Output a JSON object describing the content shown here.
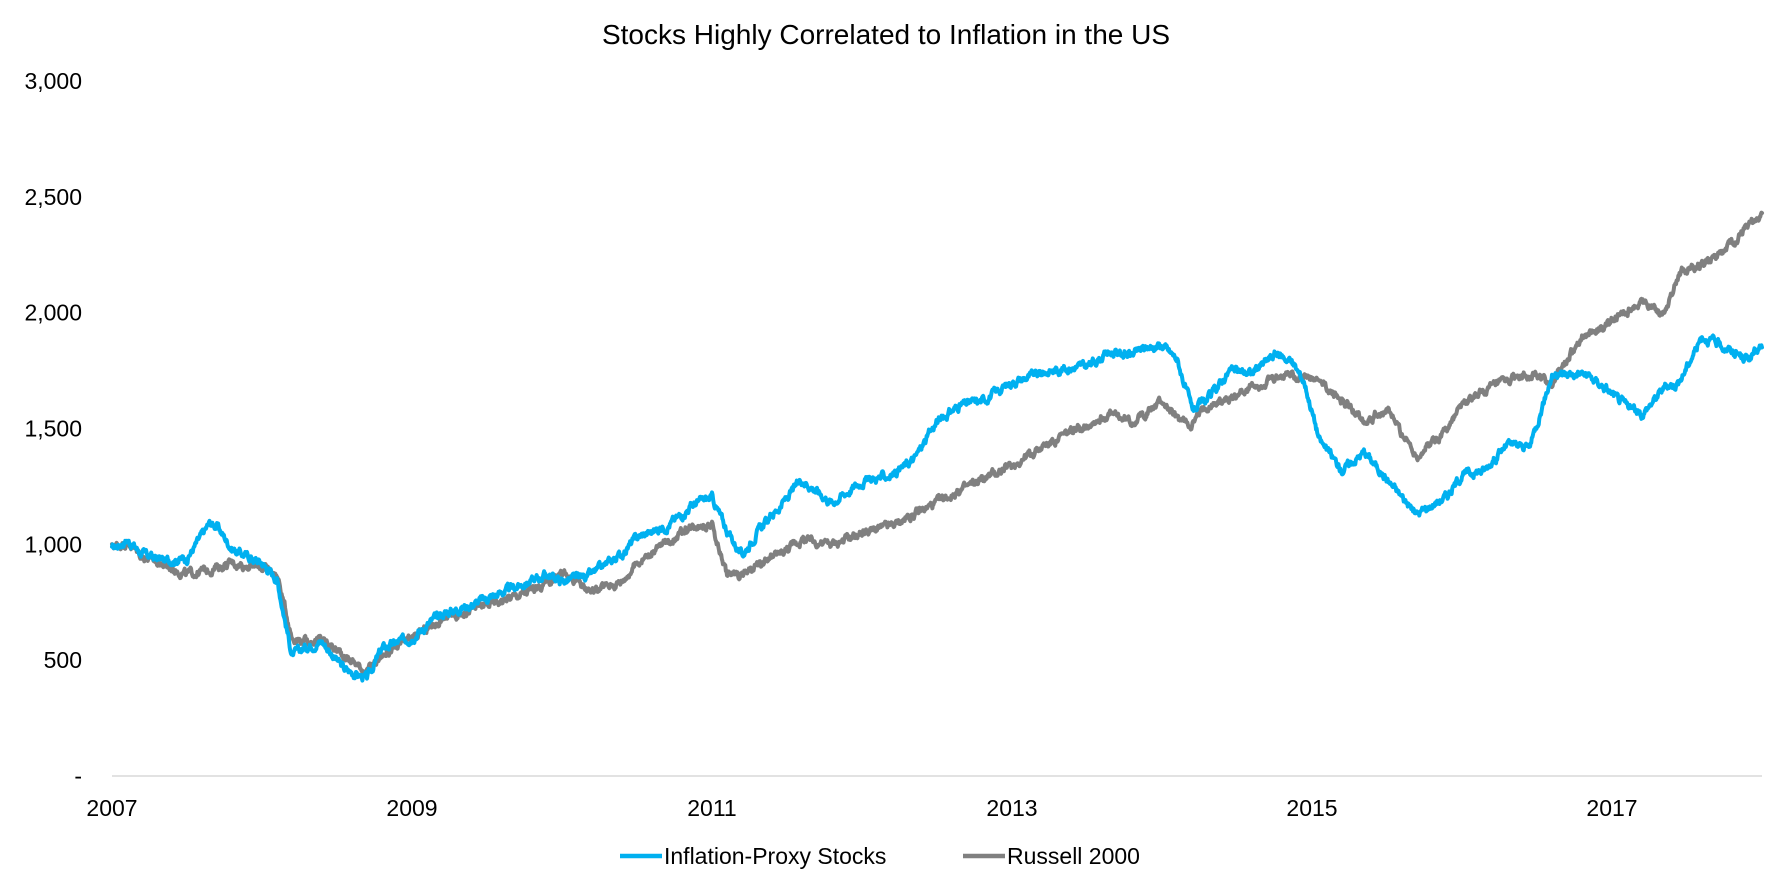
{
  "chart_data": {
    "type": "line",
    "title": "Stocks Highly Correlated to Inflation in the US",
    "xlabel": "",
    "ylabel": "",
    "xlim": [
      2007.0,
      2018.0
    ],
    "ylim": [
      0,
      3000
    ],
    "grid": false,
    "legend": "bottom-center",
    "y_ticks": [
      {
        "value": 0,
        "label": "-"
      },
      {
        "value": 500,
        "label": "500"
      },
      {
        "value": 1000,
        "label": "1,000"
      },
      {
        "value": 1500,
        "label": "1,500"
      },
      {
        "value": 2000,
        "label": "2,000"
      },
      {
        "value": 2500,
        "label": "2,500"
      },
      {
        "value": 3000,
        "label": "3,000"
      }
    ],
    "x_ticks": [
      {
        "value": 2007,
        "label": "2007"
      },
      {
        "value": 2009,
        "label": "2009"
      },
      {
        "value": 2011,
        "label": "2011"
      },
      {
        "value": 2013,
        "label": "2013"
      },
      {
        "value": 2015,
        "label": "2015"
      },
      {
        "value": 2017,
        "label": "2017"
      }
    ],
    "series": [
      {
        "name": "Inflation-Proxy Stocks",
        "color": "#00B0F0",
        "x": [
          2007.0,
          2007.1,
          2007.2,
          2007.35,
          2007.5,
          2007.65,
          2007.7,
          2007.8,
          2008.0,
          2008.1,
          2008.2,
          2008.3,
          2008.4,
          2008.55,
          2008.7,
          2008.8,
          2009.0,
          2009.2,
          2009.4,
          2009.55,
          2009.75,
          2009.9,
          2010.0,
          2010.2,
          2010.4,
          2010.5,
          2010.7,
          2010.8,
          2010.85,
          2010.9,
          2011.0,
          2011.1,
          2011.2,
          2011.3,
          2011.5,
          2011.6,
          2011.8,
          2012.0,
          2012.2,
          2012.35,
          2012.5,
          2012.65,
          2012.8,
          2013.0,
          2013.2,
          2013.35,
          2013.5,
          2013.65,
          2013.8,
          2013.9,
          2014.0,
          2014.1,
          2014.2,
          2014.3,
          2014.45,
          2014.6,
          2014.75,
          2014.85,
          2014.95,
          2015.05,
          2015.2,
          2015.35,
          2015.5,
          2015.7,
          2015.9,
          2016.0,
          2016.15,
          2016.2,
          2016.3,
          2016.45,
          2016.6,
          2016.8,
          2016.95,
          2017.05,
          2017.2,
          2017.35,
          2017.45,
          2017.6,
          2017.75,
          2017.9,
          2018.0
        ],
        "values": [
          980,
          1020,
          960,
          930,
          940,
          1090,
          1080,
          980,
          920,
          850,
          520,
          560,
          580,
          460,
          420,
          550,
          600,
          700,
          740,
          780,
          830,
          870,
          840,
          870,
          960,
          1030,
          1080,
          1130,
          1160,
          1180,
          1200,
          1060,
          950,
          1050,
          1200,
          1280,
          1180,
          1270,
          1300,
          1370,
          1530,
          1600,
          1620,
          1700,
          1740,
          1760,
          1770,
          1830,
          1820,
          1850,
          1860,
          1800,
          1580,
          1620,
          1750,
          1740,
          1820,
          1800,
          1700,
          1450,
          1320,
          1400,
          1280,
          1130,
          1210,
          1300,
          1320,
          1360,
          1430,
          1420,
          1730,
          1740,
          1680,
          1620,
          1560,
          1680,
          1700,
          1900,
          1850,
          1800,
          1850
        ]
      },
      {
        "name": "Russell 2000",
        "color": "#808080",
        "x": [
          2007.0,
          2007.1,
          2007.2,
          2007.35,
          2007.5,
          2007.65,
          2007.8,
          2008.0,
          2008.1,
          2008.2,
          2008.3,
          2008.4,
          2008.55,
          2008.7,
          2008.8,
          2009.0,
          2009.2,
          2009.4,
          2009.55,
          2009.75,
          2009.9,
          2010.0,
          2010.2,
          2010.4,
          2010.5,
          2010.7,
          2010.8,
          2010.9,
          2011.0,
          2011.1,
          2011.2,
          2011.3,
          2011.5,
          2011.6,
          2011.8,
          2012.0,
          2012.2,
          2012.35,
          2012.5,
          2012.65,
          2012.8,
          2013.0,
          2013.2,
          2013.35,
          2013.5,
          2013.65,
          2013.8,
          2013.9,
          2014.0,
          2014.1,
          2014.2,
          2014.3,
          2014.45,
          2014.6,
          2014.75,
          2014.85,
          2014.95,
          2015.05,
          2015.2,
          2015.35,
          2015.5,
          2015.7,
          2015.9,
          2016.0,
          2016.15,
          2016.3,
          2016.45,
          2016.6,
          2016.8,
          2016.95,
          2017.05,
          2017.2,
          2017.35,
          2017.45,
          2017.6,
          2017.75,
          2017.9,
          2018.0
        ],
        "values": [
          990,
          1010,
          950,
          910,
          870,
          890,
          920,
          900,
          870,
          600,
          580,
          590,
          520,
          450,
          520,
          590,
          680,
          720,
          750,
          790,
          830,
          880,
          800,
          840,
          920,
          1010,
          1050,
          1090,
          1080,
          870,
          870,
          900,
          980,
          1020,
          1000,
          1050,
          1080,
          1130,
          1180,
          1230,
          1280,
          1340,
          1420,
          1470,
          1520,
          1560,
          1530,
          1570,
          1620,
          1540,
          1520,
          1600,
          1630,
          1680,
          1710,
          1740,
          1720,
          1700,
          1620,
          1540,
          1580,
          1380,
          1500,
          1600,
          1660,
          1700,
          1740,
          1690,
          1900,
          1940,
          1980,
          2050,
          2000,
          2180,
          2210,
          2260,
          2370,
          2430
        ]
      }
    ]
  }
}
